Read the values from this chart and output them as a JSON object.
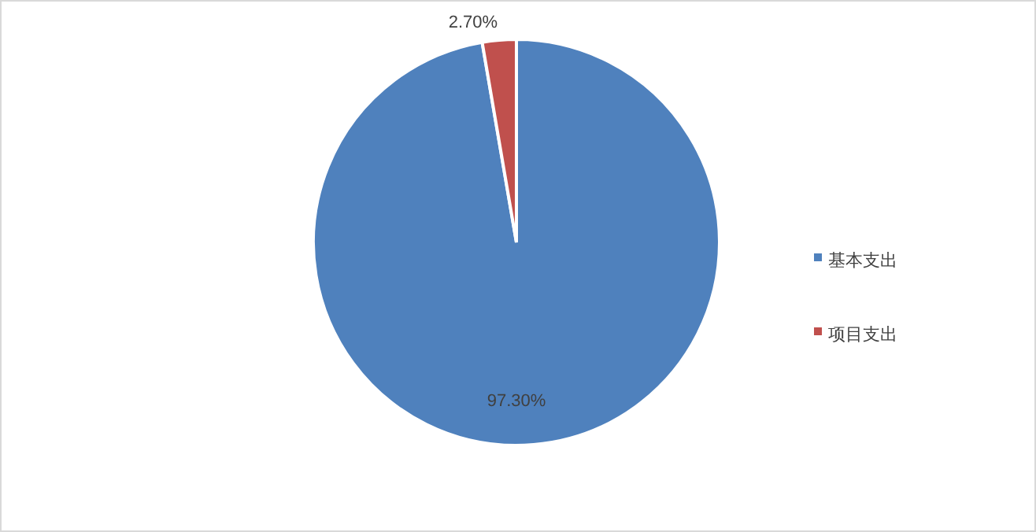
{
  "chart_data": {
    "type": "pie",
    "categories": [
      "基本支出",
      "项目支出"
    ],
    "values": [
      97.3,
      2.7
    ],
    "colors": [
      "#4f81bd",
      "#c0504d"
    ],
    "value_labels": [
      "97.30%",
      "2.70%"
    ],
    "legend": "right"
  }
}
